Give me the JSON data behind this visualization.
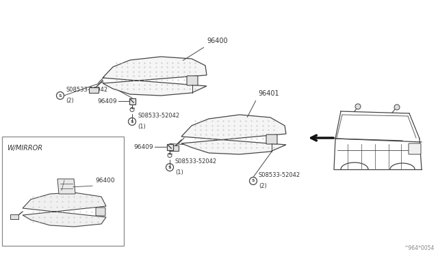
{
  "bg_color": "#ffffff",
  "lc": "#444444",
  "tc": "#333333",
  "fig_w": 6.4,
  "fig_h": 3.72,
  "watermark": "^964*0054",
  "label_96400": "96400",
  "label_96401": "96401",
  "label_96409": "96409",
  "label_screw": "08533-52042",
  "label_wmirror": "W/MIRROR"
}
